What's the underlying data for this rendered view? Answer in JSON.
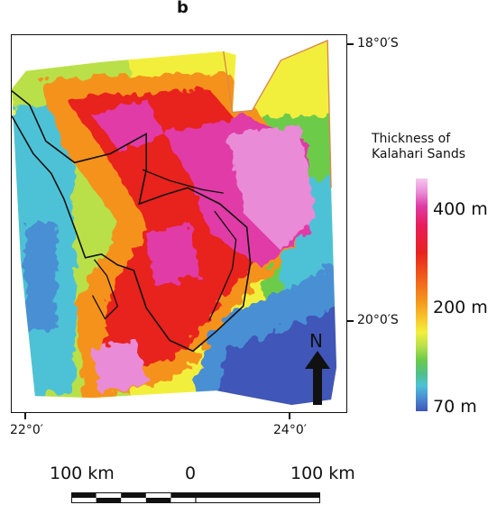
{
  "panel_label": "b",
  "map": {
    "latitude_labels": [
      "18°0′S",
      "20°0′S"
    ],
    "longitude_labels": [
      "22°0′",
      "24°0′"
    ],
    "north_label": "N"
  },
  "legend": {
    "title_line1": "Thickness of",
    "title_line2": "Kalahari Sands",
    "max_label": "400 m",
    "mid_label": "200 m",
    "min_label": "70 m"
  },
  "scale_bar": {
    "left_label": "100 km",
    "center_label": "0",
    "right_label": "100 km"
  },
  "colors": {
    "outline": "#111111",
    "boundary": "#d98a4a",
    "high": "#e03aa6",
    "mid": "#f5921c",
    "low": "#3f56b8"
  }
}
